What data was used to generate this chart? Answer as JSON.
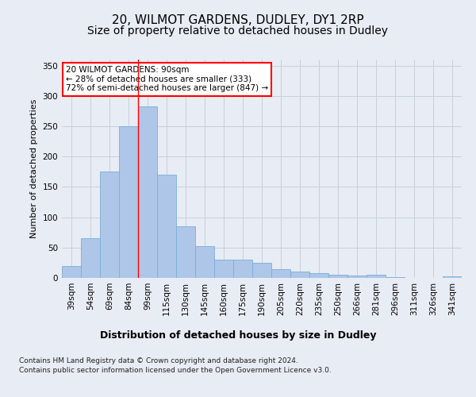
{
  "title1": "20, WILMOT GARDENS, DUDLEY, DY1 2RP",
  "title2": "Size of property relative to detached houses in Dudley",
  "xlabel": "Distribution of detached houses by size in Dudley",
  "ylabel": "Number of detached properties",
  "categories": [
    "39sqm",
    "54sqm",
    "69sqm",
    "84sqm",
    "99sqm",
    "115sqm",
    "130sqm",
    "145sqm",
    "160sqm",
    "175sqm",
    "190sqm",
    "205sqm",
    "220sqm",
    "235sqm",
    "250sqm",
    "266sqm",
    "281sqm",
    "296sqm",
    "311sqm",
    "326sqm",
    "341sqm"
  ],
  "values": [
    20,
    65,
    175,
    250,
    283,
    170,
    85,
    52,
    30,
    30,
    25,
    15,
    10,
    8,
    5,
    4,
    5,
    1,
    0,
    0,
    3
  ],
  "bar_color": "#aec6e8",
  "bar_edge_color": "#7aafd4",
  "grid_color": "#c8d0dc",
  "background_color": "#e8ecf4",
  "annotation_text": "20 WILMOT GARDENS: 90sqm\n← 28% of detached houses are smaller (333)\n72% of semi-detached houses are larger (847) →",
  "annotation_box_color": "white",
  "annotation_box_edge": "red",
  "ylim": [
    0,
    360
  ],
  "yticks": [
    0,
    50,
    100,
    150,
    200,
    250,
    300,
    350
  ],
  "footer": "Contains HM Land Registry data © Crown copyright and database right 2024.\nContains public sector information licensed under the Open Government Licence v3.0.",
  "title1_fontsize": 11,
  "title2_fontsize": 10,
  "xlabel_fontsize": 9,
  "ylabel_fontsize": 8,
  "tick_fontsize": 7.5,
  "footer_fontsize": 6.5
}
